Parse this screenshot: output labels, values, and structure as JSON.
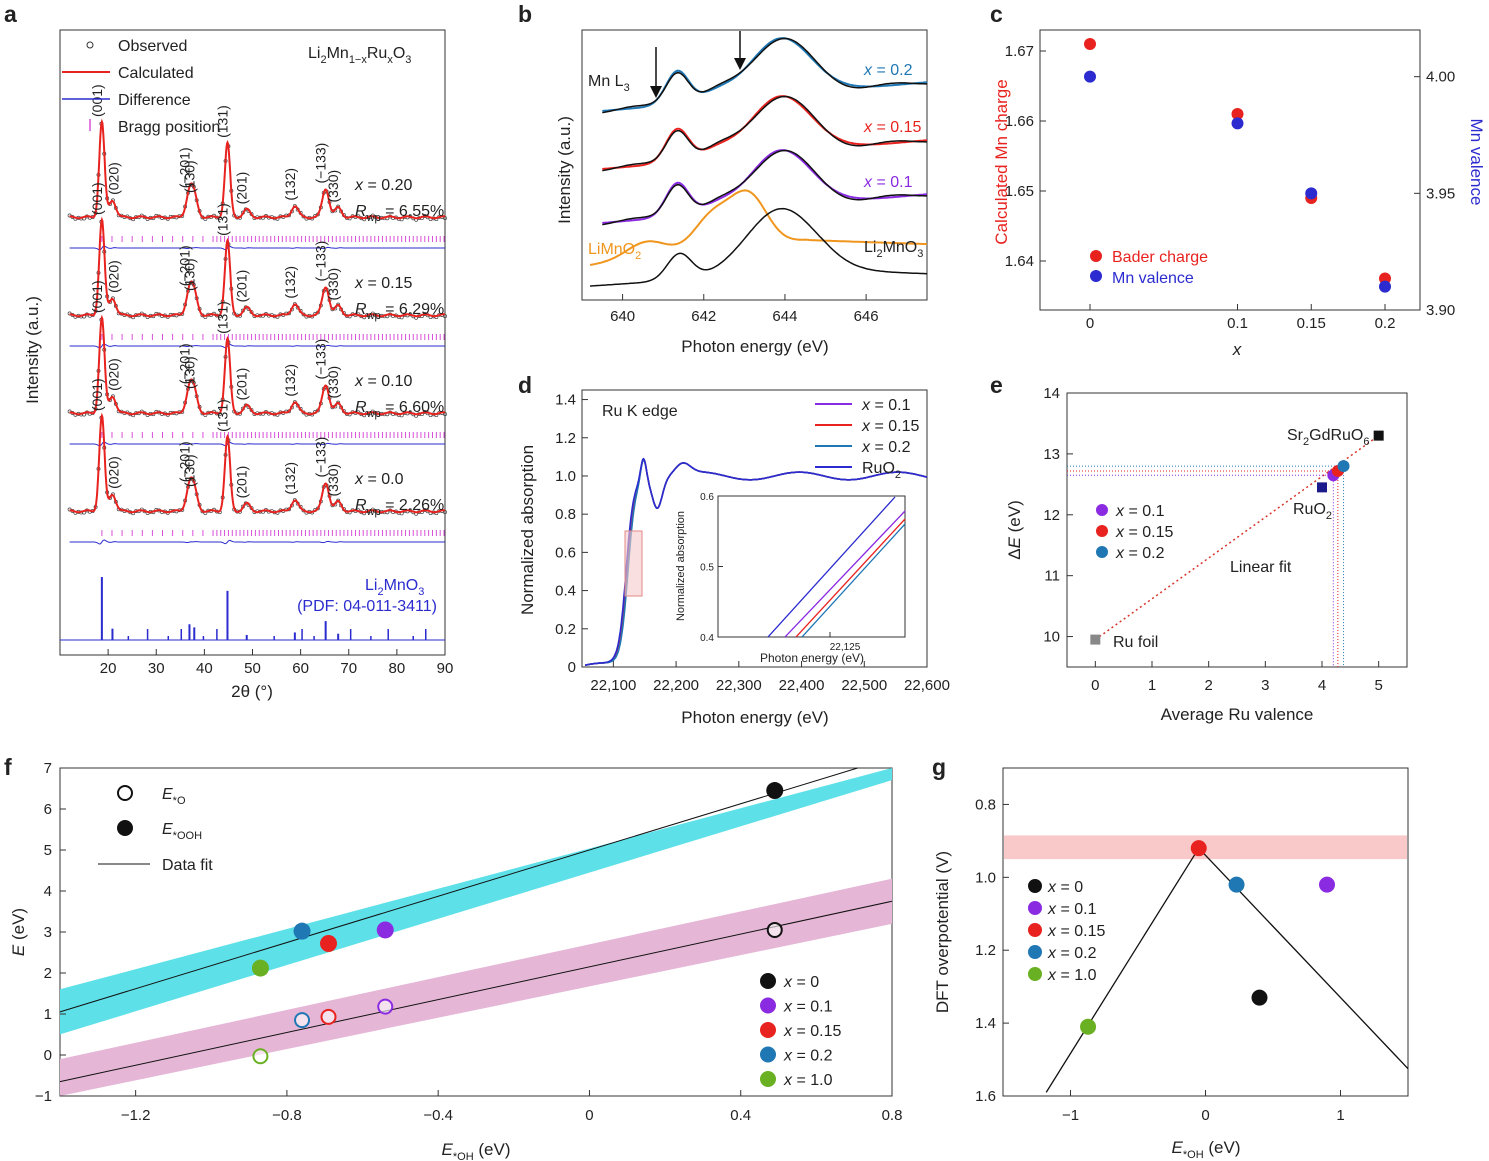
{
  "panels": {
    "a": {
      "letter": "a"
    },
    "b": {
      "letter": "b"
    },
    "c": {
      "letter": "c"
    },
    "d": {
      "letter": "d"
    },
    "e": {
      "letter": "e"
    },
    "f": {
      "letter": "f"
    },
    "g": {
      "letter": "g"
    }
  },
  "colors": {
    "red": "#e8231f",
    "blue": "#2b2bcf",
    "purple": "#8a2be2",
    "teal": "#1f77b4",
    "green": "#6ab023",
    "black": "#111111",
    "orange": "#f0961e",
    "magenta": "#d94fd9",
    "cyan_band": "#5ee0e8",
    "pink_band": "#e5b6d6",
    "red_band": "#f9c9c9"
  },
  "chart_data": [
    {
      "id": "a",
      "type": "line",
      "title": "Li2Mn1−xRuxO3",
      "xlabel": "2θ (°)",
      "ylabel": "Intensity (a.u.)",
      "xlim": [
        10,
        90
      ],
      "xticks": [
        20,
        30,
        40,
        50,
        60,
        70,
        80,
        90
      ],
      "legend": [
        "Observed",
        "Calculated",
        "Difference",
        "Bragg position"
      ],
      "series": [
        {
          "name": "x = 0.20",
          "rwp": "6.55%"
        },
        {
          "name": "x = 0.15",
          "rwp": "6.29%"
        },
        {
          "name": "x = 0.10",
          "rwp": "6.60%"
        },
        {
          "name": "x = 0.0",
          "rwp": "2.26%"
        }
      ],
      "peaks": [
        {
          "hkl": "(001)",
          "x": 18.7,
          "h": 1.0
        },
        {
          "hkl": "(020)",
          "x": 20.9,
          "h": 0.18
        },
        {
          "hkl": "(−201)",
          "x": 36.9,
          "h": 0.25
        },
        {
          "hkl": "(130)",
          "x": 37.9,
          "h": 0.2
        },
        {
          "hkl": "(131)",
          "x": 44.8,
          "h": 0.78
        },
        {
          "hkl": "(201)",
          "x": 48.8,
          "h": 0.08
        },
        {
          "hkl": "(132)",
          "x": 58.8,
          "h": 0.12
        },
        {
          "hkl": "(−133)",
          "x": 65.2,
          "h": 0.3
        },
        {
          "hkl": "(330)",
          "x": 67.8,
          "h": 0.1
        }
      ],
      "reference": {
        "name": "Li2MnO3",
        "pdf": "(PDF: 04-011-3411)"
      }
    },
    {
      "id": "b",
      "type": "line",
      "xlabel": "Photon energy (eV)",
      "ylabel": "Intensity (a.u.)",
      "xlim": [
        639,
        647.5
      ],
      "xticks": [
        640,
        642,
        644,
        646
      ],
      "edge_label": "Mn L3",
      "series": [
        {
          "name": "x = 0.2"
        },
        {
          "name": "x = 0.15"
        },
        {
          "name": "x = 0.1"
        },
        {
          "name": "LiMnO2"
        },
        {
          "name": "Li2MnO3"
        }
      ]
    },
    {
      "id": "c",
      "type": "scatter",
      "xlabel": "x",
      "ylabel_left": "Calculated Mn charge",
      "ylabel_right": "Mn valence",
      "x": [
        0,
        0.1,
        0.15,
        0.2
      ],
      "xticks": [
        "0",
        "0.1",
        "0.15",
        "0.2"
      ],
      "ylim_left": [
        1.633,
        1.673
      ],
      "yticks_left": [
        "1.64",
        "1.65",
        "1.66",
        "1.67"
      ],
      "ylim_right": [
        3.9,
        4.02
      ],
      "yticks_right": [
        "3.90",
        "3.95",
        "4.00"
      ],
      "series": [
        {
          "name": "Bader charge",
          "axis": "left",
          "values": [
            1.671,
            1.661,
            1.649,
            1.6375
          ]
        },
        {
          "name": "Mn valence",
          "axis": "right",
          "values": [
            4.0,
            3.98,
            3.95,
            3.91
          ]
        }
      ]
    },
    {
      "id": "d",
      "type": "line",
      "xlabel": "Photon energy (eV)",
      "ylabel": "Normalized absorption",
      "xlim": [
        22050,
        22600
      ],
      "ylim": [
        0,
        1.45
      ],
      "xticks": [
        "22,100",
        "22,200",
        "22,300",
        "22,400",
        "22,500",
        "22,600"
      ],
      "yticks": [
        "0",
        "0.2",
        "0.4",
        "0.6",
        "0.8",
        "1.0",
        "1.2",
        "1.4"
      ],
      "edge_label": "Ru K edge",
      "series": [
        {
          "name": "x = 0.1"
        },
        {
          "name": "x = 0.15"
        },
        {
          "name": "x = 0.2"
        },
        {
          "name": "RuO2"
        }
      ],
      "inset": {
        "xlabel": "Photon energy (eV)",
        "ylabel": "Normalized absorption",
        "xtick": "22,125",
        "yticks": [
          "0.4",
          "0.5",
          "0.6"
        ]
      }
    },
    {
      "id": "e",
      "type": "scatter",
      "xlabel": "Average Ru valence",
      "ylabel": "ΔE (eV)",
      "xlim": [
        -0.5,
        5.5
      ],
      "ylim": [
        9.5,
        14
      ],
      "xticks": [
        "0",
        "1",
        "2",
        "3",
        "4",
        "5"
      ],
      "yticks": [
        "10",
        "11",
        "12",
        "13",
        "14"
      ],
      "references": [
        {
          "name": "Ru foil",
          "x": 0,
          "y": 9.95
        },
        {
          "name": "RuO2",
          "x": 4,
          "y": 12.45
        },
        {
          "name": "Sr2GdRuO6",
          "x": 5,
          "y": 13.3
        }
      ],
      "series": [
        {
          "name": "x = 0.1",
          "x": 4.2,
          "y": 12.65
        },
        {
          "name": "x = 0.15",
          "x": 4.28,
          "y": 12.72
        },
        {
          "name": "x = 0.2",
          "x": 4.38,
          "y": 12.8
        }
      ],
      "fit_label": "Linear fit"
    },
    {
      "id": "f",
      "type": "scatter",
      "xlabel": "E*OH (eV)",
      "ylabel": "E (eV)",
      "xlim": [
        -1.4,
        0.8
      ],
      "ylim": [
        -1,
        7
      ],
      "xticks": [
        "−1.2",
        "−0.8",
        "−0.4",
        "0",
        "0.4",
        "0.8"
      ],
      "yticks": [
        "−1",
        "0",
        "1",
        "2",
        "3",
        "4",
        "5",
        "6",
        "7"
      ],
      "legend_markers": [
        "E*O",
        "E*OOH",
        "Data fit"
      ],
      "fit_OOH": {
        "slope": 2.82,
        "intercept": 5.0
      },
      "fit_O": {
        "slope": 2.0,
        "intercept": 2.15
      },
      "series": [
        {
          "name": "x = 0",
          "x": 0.49,
          "e_ooh": 6.45,
          "e_o": 3.05
        },
        {
          "name": "x = 0.1",
          "x": -0.54,
          "e_ooh": 3.05,
          "e_o": 1.18
        },
        {
          "name": "x = 0.15",
          "x": -0.69,
          "e_ooh": 2.72,
          "e_o": 0.93
        },
        {
          "name": "x = 0.2",
          "x": -0.76,
          "e_ooh": 3.02,
          "e_o": 0.85
        },
        {
          "name": "x = 1.0",
          "x": -0.87,
          "e_ooh": 2.12,
          "e_o": -0.03
        }
      ]
    },
    {
      "id": "g",
      "type": "scatter",
      "xlabel": "E*OH (eV)",
      "ylabel": "DFT overpotential (V)",
      "xlim": [
        -1.5,
        1.5
      ],
      "ylim": [
        1.6,
        0.7
      ],
      "xticks": [
        "−1",
        "0",
        "1"
      ],
      "yticks": [
        "0.8",
        "1.0",
        "1.2",
        "1.4",
        "1.6"
      ],
      "series": [
        {
          "name": "x = 0",
          "x": 0.4,
          "y": 1.33
        },
        {
          "name": "x = 0.1",
          "x": 0.9,
          "y": 1.02
        },
        {
          "name": "x = 0.15",
          "x": -0.05,
          "y": 0.92
        },
        {
          "name": "x = 0.2",
          "x": 0.23,
          "y": 1.02
        },
        {
          "name": "x = 1.0",
          "x": -0.87,
          "y": 1.41
        }
      ]
    }
  ]
}
